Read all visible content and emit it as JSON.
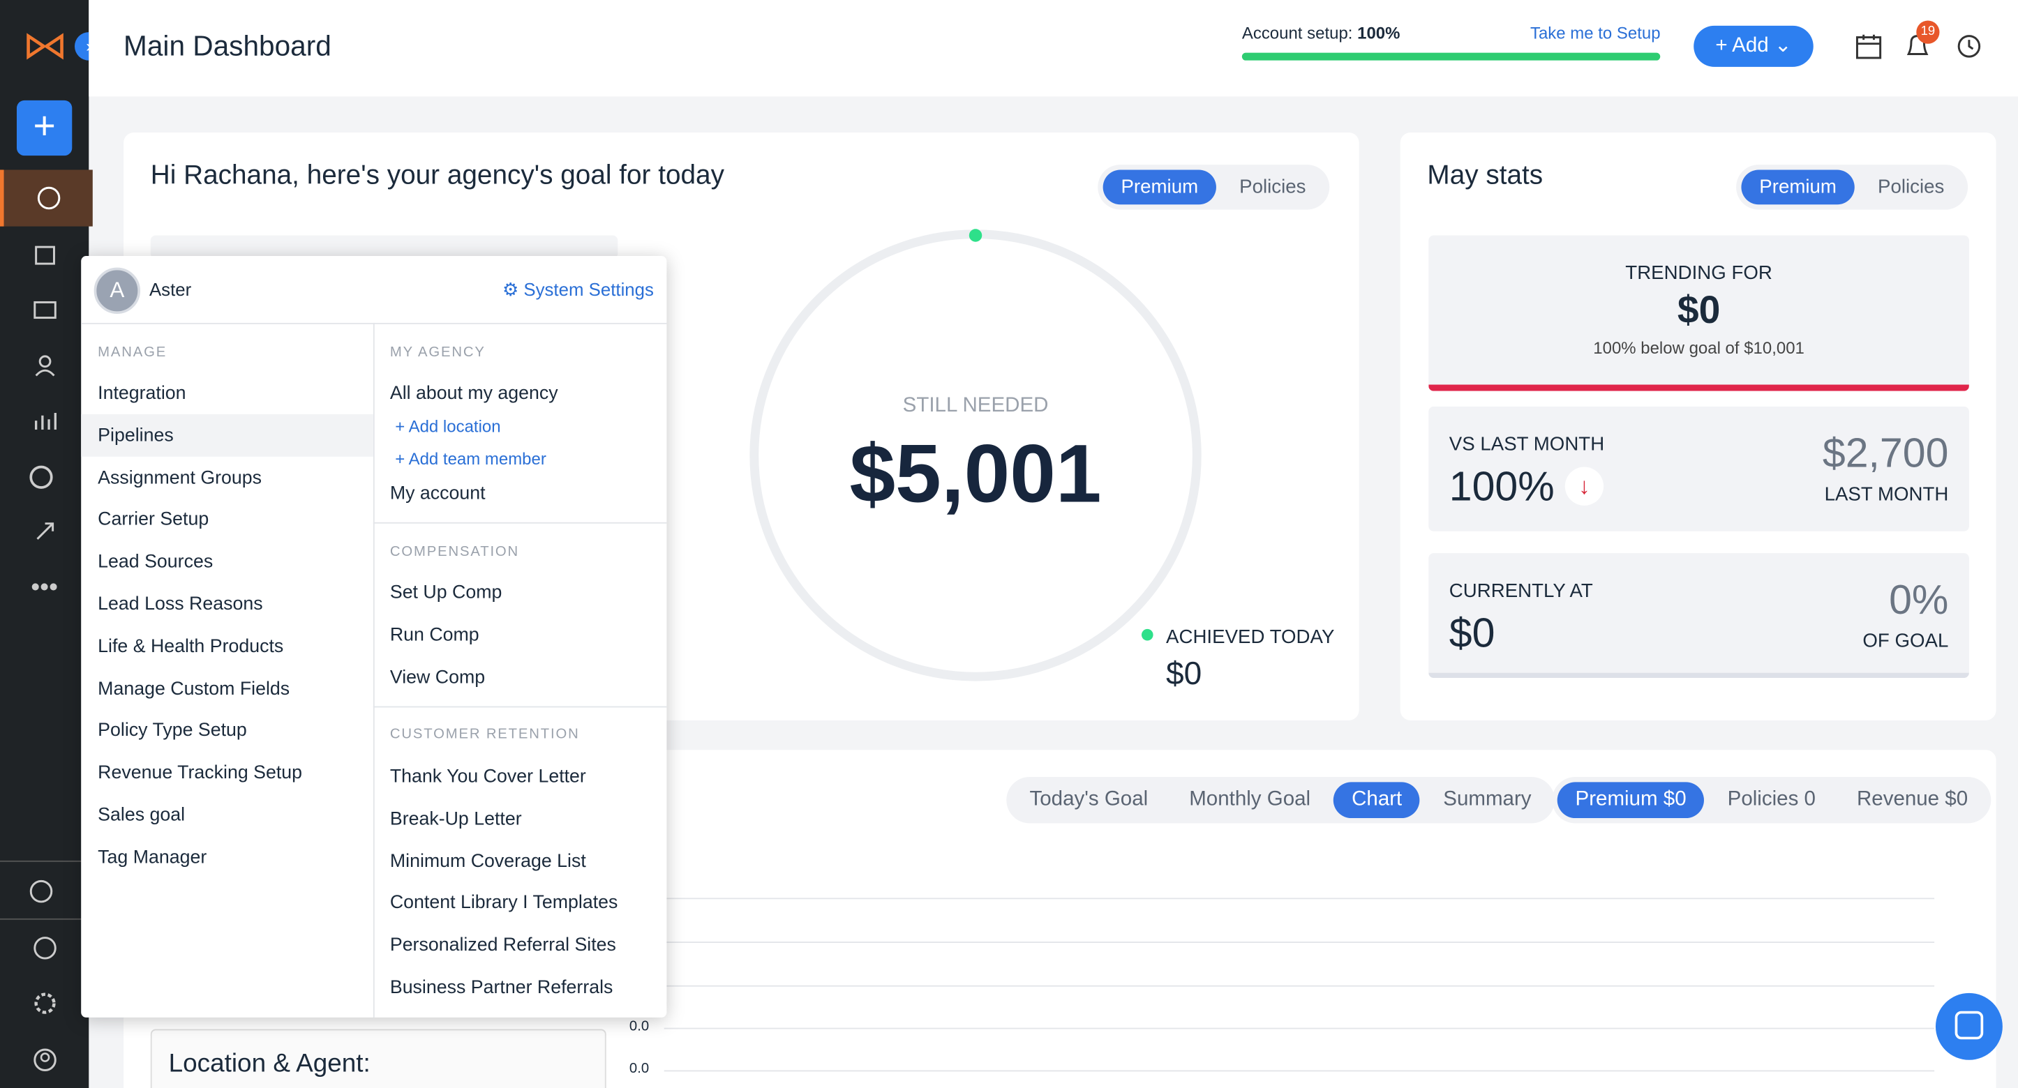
{
  "header": {
    "title": "Main Dashboard",
    "setup_label": "Account setup:",
    "setup_value": "100%",
    "setup_link": "Take me to Setup",
    "add_button": "Add",
    "notification_count": "19"
  },
  "goal_card": {
    "greeting": "Hi Rachana, here's your agency's goal for today",
    "tabs": [
      "Premium",
      "Policies"
    ],
    "still_needed_label": "STILL NEEDED",
    "still_needed_value": "$5,001",
    "achieved_label": "ACHIEVED TODAY",
    "achieved_value": "$0"
  },
  "stats_card": {
    "title": "May stats",
    "tabs": [
      "Premium",
      "Policies"
    ],
    "trending_label": "TRENDING FOR",
    "trending_value": "$0",
    "trending_note": "100% below goal of $10,001",
    "vs_label": "VS LAST MONTH",
    "vs_value": "100%",
    "last_month_value": "$2,700",
    "last_month_label": "LAST MONTH",
    "current_label": "CURRENTLY AT",
    "current_value": "$0",
    "goal_pct": "0%",
    "goal_pct_label": "OF GOAL"
  },
  "chart_card": {
    "view_tabs": [
      "Today's Goal",
      "Monthly Goal",
      "Chart",
      "Summary"
    ],
    "metric_tabs": [
      "Premium $0",
      "Policies 0",
      "Revenue $0"
    ],
    "location_label": "Location & Agent:",
    "y_labels": [
      "0.0",
      "0.0"
    ]
  },
  "menu": {
    "user_initial": "A",
    "user_name": "Aster",
    "settings_link": "System Settings",
    "manage": {
      "heading": "MANAGE",
      "items": [
        "Integration",
        "Pipelines",
        "Assignment Groups",
        "Carrier Setup",
        "Lead Sources",
        "Lead Loss Reasons",
        "Life & Health Products",
        "Manage Custom Fields",
        "Policy Type Setup",
        "Revenue Tracking Setup",
        "Sales goal",
        "Tag Manager"
      ]
    },
    "my_agency": {
      "heading": "MY AGENCY",
      "about": "All about my agency",
      "add_location": "Add location",
      "add_team_member": "Add team member",
      "account": "My account"
    },
    "compensation": {
      "heading": "COMPENSATION",
      "items": [
        "Set Up Comp",
        "Run Comp",
        "View Comp"
      ]
    },
    "retention": {
      "heading": "CUSTOMER RETENTION",
      "items": [
        "Thank You Cover Letter",
        "Break-Up Letter",
        "Minimum Coverage List",
        "Content Library I Templates",
        "Personalized Referral Sites",
        "Business Partner Referrals"
      ]
    }
  }
}
